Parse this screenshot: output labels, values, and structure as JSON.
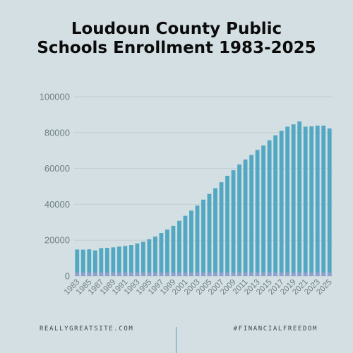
{
  "title_lines": [
    "Loudoun County Public",
    "Schools Enrollment 1983-2025"
  ],
  "footer": {
    "left": "REALLYGREATSITE.COM",
    "right": "#FINANCIALFREEDOM"
  },
  "colors": {
    "bar": "#52a8c2",
    "bar_base": "#8f9fcf",
    "grid": "#c3ced2",
    "divider": "#5fa3b8"
  },
  "chart_data": {
    "type": "bar",
    "title": "Loudoun County Public Schools Enrollment 1983-2025",
    "xlabel": "",
    "ylabel": "",
    "ylim": [
      0,
      100000
    ],
    "yticks": [
      "0",
      "20000",
      "40000",
      "60000",
      "80000",
      "100000"
    ],
    "grid": true,
    "categories": [
      "1983",
      "1984",
      "1985",
      "1986",
      "1987",
      "1988",
      "1989",
      "1990",
      "1991",
      "1992",
      "1993",
      "1994",
      "1995",
      "1996",
      "1997",
      "1998",
      "1999",
      "2000",
      "2001",
      "2002",
      "2003",
      "2004",
      "2005",
      "2006",
      "2007",
      "2008",
      "2009",
      "2010",
      "2011",
      "2012",
      "2013",
      "2014",
      "2015",
      "2016",
      "2017",
      "2018",
      "2019",
      "2020",
      "2021",
      "2022",
      "2023",
      "2024",
      "2025"
    ],
    "xtick_labels": [
      "1983",
      "1985",
      "1987",
      "1989",
      "1991",
      "1993",
      "1995",
      "1997",
      "1999",
      "2001",
      "2003",
      "2005",
      "2007",
      "2009",
      "2011",
      "2013",
      "2015",
      "2017",
      "2019",
      "2021",
      "2023",
      "2025"
    ],
    "values": [
      14800,
      14700,
      14900,
      14300,
      15600,
      15700,
      16000,
      16400,
      16800,
      17300,
      18200,
      19100,
      20500,
      22000,
      24000,
      25900,
      28000,
      30800,
      33600,
      36500,
      39300,
      42600,
      45800,
      49000,
      52300,
      55900,
      59000,
      62200,
      65000,
      67500,
      70300,
      72800,
      75700,
      78500,
      81000,
      83300,
      84600,
      86200,
      83300,
      83500,
      83900,
      83900,
      82300
    ]
  }
}
